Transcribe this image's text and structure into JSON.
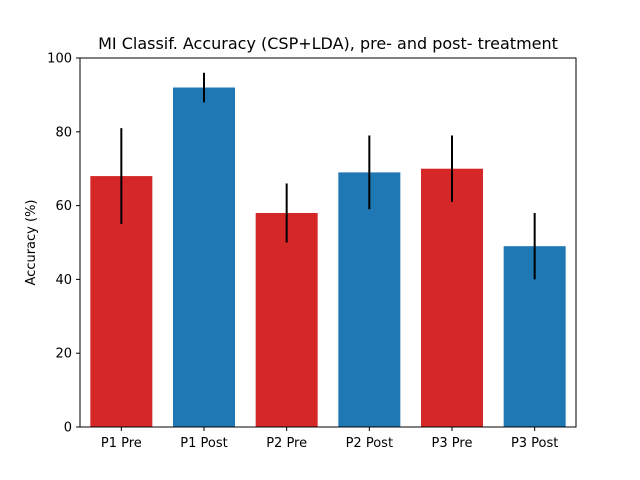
{
  "chart_data": {
    "type": "bar",
    "title": "MI Classif. Accuracy (CSP+LDA), pre- and post- treatment",
    "xlabel": "",
    "ylabel": "Accuracy (%)",
    "categories": [
      "P1 Pre",
      "P1 Post",
      "P2 Pre",
      "P2 Post",
      "P3 Pre",
      "P3 Post"
    ],
    "values": [
      68,
      92,
      58,
      69,
      70,
      49
    ],
    "error_low": [
      55,
      88,
      50,
      59,
      61,
      40
    ],
    "error_high": [
      81,
      96,
      66,
      79,
      79,
      58
    ],
    "bar_colors": [
      "#d62728",
      "#1f77b4",
      "#d62728",
      "#1f77b4",
      "#d62728",
      "#1f77b4"
    ],
    "ylim": [
      0,
      100
    ],
    "yticks": [
      0,
      20,
      40,
      60,
      80,
      100
    ],
    "grid": false,
    "legend": "none"
  }
}
